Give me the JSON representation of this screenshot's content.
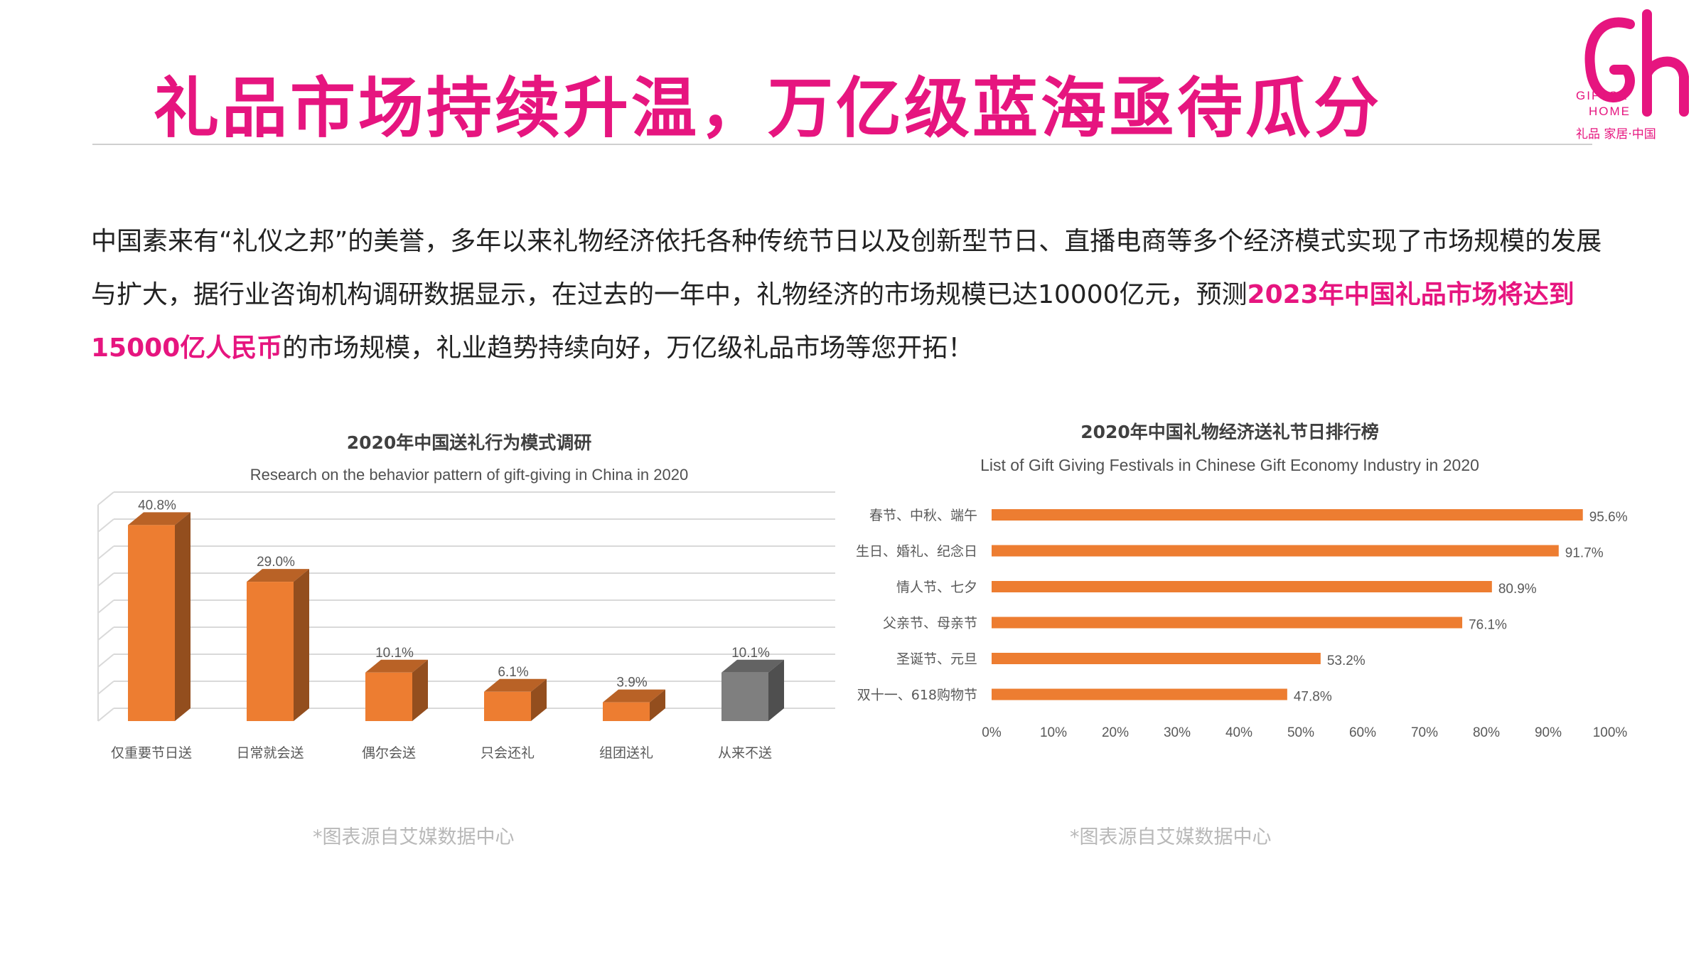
{
  "page": {
    "title": "礼品市场持续升温，万亿级蓝海亟待瓜分",
    "intro_before": "中国素来有“礼仪之邦”的美誉，多年以来礼物经济依托各种传统节日以及创新型节日、直播电商等多个经济模式实现了市场规模的发展与扩大，据行业咨询机构调研数据显示，在过去的一年中，礼物经济的市场规模已达10000亿元，预测",
    "intro_highlight": "2023年中国礼品市场将达到15000亿人民币",
    "intro_after": "的市场规模，礼业趋势持续向好，万亿级礼品市场等您开拓！",
    "source_left": "*图表源自艾媒数据中心",
    "source_right": "*图表源自艾媒数据中心",
    "accent_color": "#e6157f"
  },
  "logo": {
    "line1": "GIFTS&",
    "line2": "HOME",
    "line3": "礼品 家居·中国",
    "color": "#e6157f"
  },
  "chart_data": [
    {
      "type": "bar",
      "title": "2020年中国送礼行为模式调研",
      "subtitle": "Research on the behavior pattern of gift-giving in China in 2020",
      "categories": [
        "仅重要节日送",
        "日常就会送",
        "偶尔会送",
        "只会还礼",
        "组团送礼",
        "从来不送"
      ],
      "values": [
        40.8,
        29.0,
        10.1,
        6.1,
        3.9,
        10.1
      ],
      "value_labels": [
        "40.8%",
        "29.0%",
        "10.1%",
        "6.1%",
        "3.9%",
        "10.1%"
      ],
      "ylim": [
        0,
        45
      ],
      "grid": true,
      "colors": [
        "#ed7d31",
        "#ed7d31",
        "#ed7d31",
        "#ed7d31",
        "#ed7d31",
        "#7f7f7f"
      ]
    },
    {
      "type": "bar",
      "orientation": "horizontal",
      "title": "2020年中国礼物经济送礼节日排行榜",
      "subtitle": "List of Gift Giving Festivals in Chinese Gift Economy Industry in 2020",
      "categories": [
        "春节、中秋、端午",
        "生日、婚礼、纪念日",
        "情人节、七夕",
        "父亲节、母亲节",
        "圣诞节、元旦",
        "双十一、618购物节"
      ],
      "values": [
        95.6,
        91.7,
        80.9,
        76.1,
        53.2,
        47.8
      ],
      "value_labels": [
        "95.6%",
        "91.7%",
        "80.9%",
        "76.1%",
        "53.2%",
        "47.8%"
      ],
      "xlim": [
        0,
        100
      ],
      "xticks": [
        "0%",
        "10%",
        "20%",
        "30%",
        "40%",
        "50%",
        "60%",
        "70%",
        "80%",
        "90%",
        "100%"
      ],
      "color": "#ed7d31"
    }
  ]
}
